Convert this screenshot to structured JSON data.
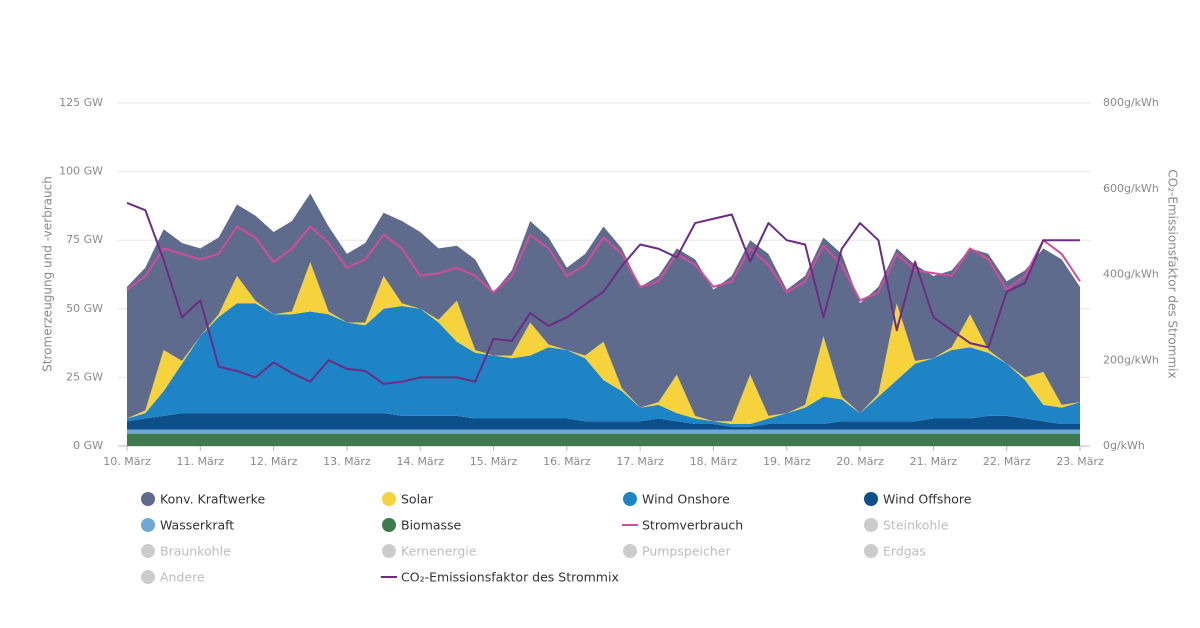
{
  "chart_data": {
    "type": "stacked_area",
    "ylabel": "Stromerzeugung und -verbrauch",
    "y2label": "CO₂-Emissionsfaktor des Strommix",
    "x": [
      10,
      10.25,
      10.5,
      10.75,
      11,
      11.25,
      11.5,
      11.75,
      12,
      12.25,
      12.5,
      12.75,
      13,
      13.25,
      13.5,
      13.75,
      14,
      14.25,
      14.5,
      14.75,
      15,
      15.25,
      15.5,
      15.75,
      16,
      16.25,
      16.5,
      16.75,
      17,
      17.25,
      17.5,
      17.75,
      18,
      18.25,
      18.5,
      18.75,
      19,
      19.25,
      19.5,
      19.75,
      20,
      20.25,
      20.5,
      20.75,
      21,
      21.25,
      21.5,
      21.75,
      22,
      22.25,
      22.5,
      22.75,
      23
    ],
    "xlim": [
      10,
      23
    ],
    "xticks": [
      {
        "value": 10,
        "label": "10. März"
      },
      {
        "value": 11,
        "label": "11. März"
      },
      {
        "value": 12,
        "label": "12. März"
      },
      {
        "value": 13,
        "label": "13. März"
      },
      {
        "value": 14,
        "label": "14. März"
      },
      {
        "value": 15,
        "label": "15. März"
      },
      {
        "value": 16,
        "label": "16. März"
      },
      {
        "value": 17,
        "label": "17. März"
      },
      {
        "value": 18,
        "label": "18. März"
      },
      {
        "value": 19,
        "label": "19. März"
      },
      {
        "value": 20,
        "label": "20. März"
      },
      {
        "value": 21,
        "label": "21. März"
      },
      {
        "value": 22,
        "label": "22. März"
      },
      {
        "value": 23,
        "label": "23. März"
      }
    ],
    "ylim": [
      0,
      125
    ],
    "yticks": [
      {
        "value": 0,
        "label": "0 GW"
      },
      {
        "value": 25,
        "label": "25 GW"
      },
      {
        "value": 50,
        "label": "50 GW"
      },
      {
        "value": 75,
        "label": "75 GW"
      },
      {
        "value": 100,
        "label": "100 GW"
      },
      {
        "value": 125,
        "label": "125 GW"
      }
    ],
    "y2lim": [
      0,
      800
    ],
    "y2ticks": [
      {
        "value": 0,
        "label": "0g/kWh"
      },
      {
        "value": 200,
        "label": "200g/kWh"
      },
      {
        "value": 400,
        "label": "400g/kWh"
      },
      {
        "value": 600,
        "label": "600g/kWh"
      },
      {
        "value": 800,
        "label": "800g/kWh"
      }
    ],
    "grid": true,
    "series": [
      {
        "name": "Konv. Kraftwerke",
        "color": "#5e6b8d",
        "render": "area",
        "values": [
          48,
          52,
          44,
          43,
          32,
          28,
          26,
          31,
          30,
          33,
          25,
          31,
          25,
          29,
          23,
          30,
          28,
          26,
          20,
          33,
          23,
          31,
          37,
          39,
          30,
          37,
          42,
          51,
          44,
          46,
          46,
          57,
          48,
          53,
          49,
          59,
          45,
          47,
          36,
          52,
          40,
          39,
          20,
          35,
          30,
          28,
          24,
          35,
          30,
          39,
          45,
          53,
          42
        ]
      },
      {
        "name": "Solar",
        "color": "#f6d33c",
        "render": "area",
        "values": [
          0,
          1,
          15,
          1,
          0,
          1,
          10,
          1,
          0,
          1,
          18,
          1,
          0,
          1,
          12,
          1,
          0,
          1,
          15,
          1,
          0,
          1,
          12,
          1,
          0,
          1,
          14,
          1,
          0,
          1,
          14,
          1,
          0,
          1,
          18,
          1,
          0,
          1,
          22,
          1,
          0,
          1,
          28,
          1,
          0,
          1,
          12,
          1,
          0,
          1,
          12,
          1,
          0
        ]
      },
      {
        "name": "Wind Onshore",
        "color": "#1e84c6",
        "render": "area",
        "values": [
          1,
          2,
          9,
          18,
          28,
          35,
          40,
          40,
          36,
          36,
          37,
          36,
          33,
          32,
          38,
          40,
          39,
          34,
          27,
          24,
          23,
          22,
          23,
          26,
          25,
          23,
          15,
          11,
          5,
          5,
          3,
          2,
          1,
          1,
          1,
          2,
          4,
          6,
          10,
          8,
          3,
          9,
          15,
          21,
          22,
          25,
          26,
          23,
          19,
          14,
          6,
          6,
          8
        ]
      },
      {
        "name": "Wind Offshore",
        "color": "#0c4f8b",
        "render": "area",
        "values": [
          3,
          4,
          5,
          6,
          6,
          6,
          6,
          6,
          6,
          6,
          6,
          6,
          6,
          6,
          6,
          5,
          5,
          5,
          5,
          4,
          4,
          4,
          4,
          4,
          4,
          3,
          3,
          3,
          3,
          4,
          3,
          2,
          2,
          1,
          1,
          2,
          2,
          2,
          2,
          3,
          3,
          3,
          3,
          3,
          4,
          4,
          4,
          5,
          5,
          4,
          3,
          2,
          2
        ]
      },
      {
        "name": "Wasserkraft",
        "color": "#6ea8d3",
        "render": "area",
        "values": [
          1.5,
          1.5,
          1.5,
          1.5,
          1.5,
          1.5,
          1.5,
          1.5,
          1.5,
          1.5,
          1.5,
          1.5,
          1.5,
          1.5,
          1.5,
          1.5,
          1.5,
          1.5,
          1.5,
          1.5,
          1.5,
          1.5,
          1.5,
          1.5,
          1.5,
          1.5,
          1.5,
          1.5,
          1.5,
          1.5,
          1.5,
          1.5,
          1.5,
          1.5,
          1.5,
          1.5,
          1.5,
          1.5,
          1.5,
          1.5,
          1.5,
          1.5,
          1.5,
          1.5,
          1.5,
          1.5,
          1.5,
          1.5,
          1.5,
          1.5,
          1.5,
          1.5,
          1.5
        ]
      },
      {
        "name": "Biomasse",
        "color": "#3f7a4f",
        "render": "area",
        "values": [
          4.5,
          4.5,
          4.5,
          4.5,
          4.5,
          4.5,
          4.5,
          4.5,
          4.5,
          4.5,
          4.5,
          4.5,
          4.5,
          4.5,
          4.5,
          4.5,
          4.5,
          4.5,
          4.5,
          4.5,
          4.5,
          4.5,
          4.5,
          4.5,
          4.5,
          4.5,
          4.5,
          4.5,
          4.5,
          4.5,
          4.5,
          4.5,
          4.5,
          4.5,
          4.5,
          4.5,
          4.5,
          4.5,
          4.5,
          4.5,
          4.5,
          4.5,
          4.5,
          4.5,
          4.5,
          4.5,
          4.5,
          4.5,
          4.5,
          4.5,
          4.5,
          4.5,
          4.5
        ]
      },
      {
        "name": "Stromverbrauch",
        "color": "#d24c9b",
        "render": "line",
        "values": [
          57,
          62,
          72,
          70,
          68,
          70,
          80,
          76,
          67,
          72,
          80,
          74,
          65,
          68,
          77,
          72,
          62,
          63,
          65,
          62,
          56,
          62,
          77,
          72,
          62,
          66,
          76,
          70,
          58,
          60,
          70,
          66,
          58,
          60,
          72,
          66,
          56,
          60,
          73,
          66,
          53,
          56,
          70,
          64,
          63,
          62,
          72,
          68,
          57,
          62,
          75,
          70,
          60
        ]
      },
      {
        "name": "Steinkohle",
        "color": "#cccccc",
        "render": "none"
      },
      {
        "name": "Braunkohle",
        "color": "#cccccc",
        "render": "none"
      },
      {
        "name": "Kernenergie",
        "color": "#cccccc",
        "render": "none"
      },
      {
        "name": "Pumpspeicher",
        "color": "#cccccc",
        "render": "none"
      },
      {
        "name": "Erdgas",
        "color": "#cccccc",
        "render": "none"
      },
      {
        "name": "Andere",
        "color": "#cccccc",
        "render": "none"
      },
      {
        "name": "CO₂-Emissionsfaktor des Strommix",
        "color": "#6b2c83",
        "render": "line",
        "axis": "y2",
        "values": [
          567,
          550,
          434,
          300,
          340,
          185,
          175,
          160,
          195,
          170,
          150,
          200,
          180,
          175,
          145,
          150,
          160,
          160,
          160,
          150,
          250,
          245,
          310,
          280,
          300,
          330,
          360,
          420,
          470,
          460,
          440,
          520,
          530,
          540,
          430,
          520,
          480,
          470,
          300,
          460,
          520,
          480,
          270,
          430,
          300,
          270,
          240,
          230,
          360,
          380,
          480,
          480,
          480
        ]
      }
    ]
  }
}
